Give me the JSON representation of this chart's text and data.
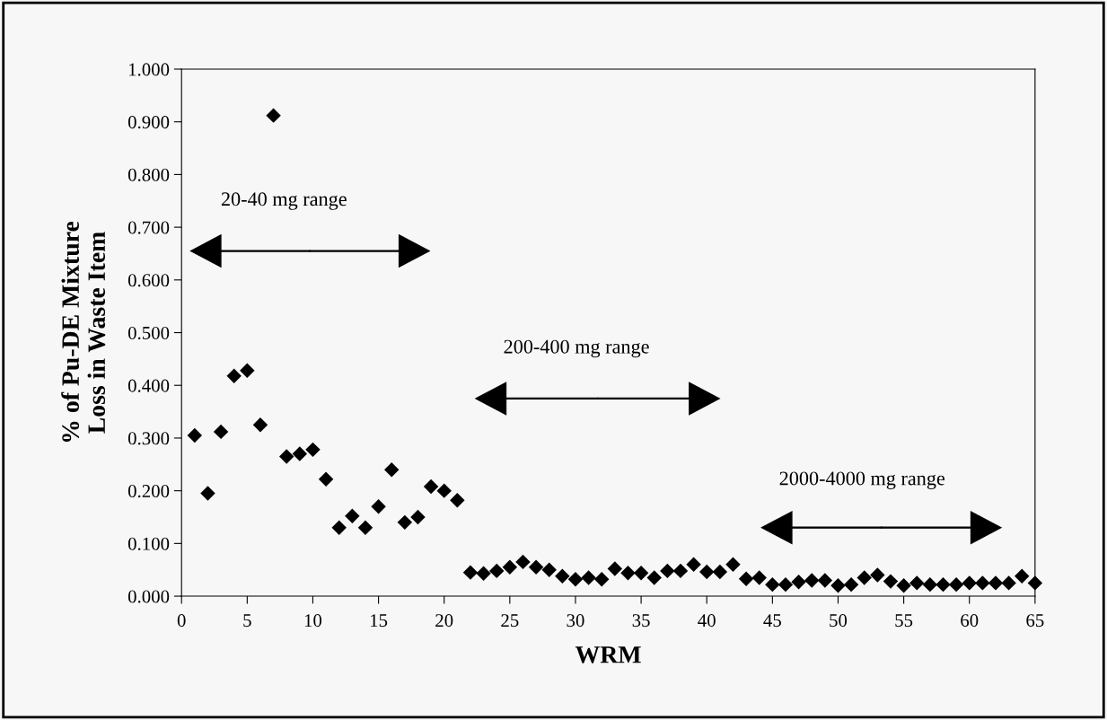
{
  "chart_data": {
    "type": "scatter",
    "xlabel": "WRM",
    "ylabel": "% of Pu-DE Mixture\nLoss in Waste Item",
    "x": [
      1,
      2,
      3,
      4,
      5,
      6,
      7,
      8,
      9,
      10,
      11,
      12,
      13,
      14,
      15,
      16,
      17,
      18,
      19,
      20,
      21,
      22,
      23,
      24,
      25,
      26,
      27,
      28,
      29,
      30,
      31,
      32,
      33,
      34,
      35,
      36,
      37,
      38,
      39,
      40,
      41,
      42,
      43,
      44,
      45,
      46,
      47,
      48,
      49,
      50,
      51,
      52,
      53,
      54,
      55,
      56,
      57,
      58,
      59,
      60,
      61,
      62,
      63,
      64,
      65
    ],
    "series": [
      {
        "color": "#000000",
        "values": [
          0.305,
          0.195,
          0.312,
          0.418,
          0.428,
          0.325,
          0.912,
          0.265,
          0.27,
          0.278,
          0.222,
          0.13,
          0.152,
          0.13,
          0.17,
          0.24,
          0.14,
          0.15,
          0.208,
          0.2,
          0.182,
          0.045,
          0.043,
          0.048,
          0.055,
          0.065,
          0.055,
          0.05,
          0.038,
          0.032,
          0.035,
          0.032,
          0.052,
          0.044,
          0.044,
          0.035,
          0.048,
          0.048,
          0.06,
          0.046,
          0.046,
          0.06,
          0.033,
          0.035,
          0.022,
          0.022,
          0.027,
          0.03,
          0.03,
          0.02,
          0.022,
          0.035,
          0.04,
          0.028,
          0.02,
          0.025,
          0.022,
          0.022,
          0.022,
          0.025,
          0.025,
          0.025,
          0.025,
          0.038,
          0.025
        ]
      }
    ],
    "xlim": [
      0,
      65
    ],
    "xticks": [
      0,
      5,
      10,
      15,
      20,
      25,
      30,
      35,
      40,
      45,
      50,
      55,
      60,
      65
    ],
    "ylim": [
      0,
      1
    ],
    "yticks": [
      {
        "value": 0,
        "label": "0.000"
      },
      {
        "value": 0.1,
        "label": "0.100"
      },
      {
        "value": 0.2,
        "label": "0.200"
      },
      {
        "value": 0.3,
        "label": "0.300"
      },
      {
        "value": 0.4,
        "label": "0.400"
      },
      {
        "value": 0.5,
        "label": "0.500"
      },
      {
        "value": 0.6,
        "label": "0.600"
      },
      {
        "value": 0.7,
        "label": "0.700"
      },
      {
        "value": 0.8,
        "label": "0.800"
      },
      {
        "value": 0.9,
        "label": "0.900"
      },
      {
        "value": 1,
        "label": "1.000"
      }
    ],
    "annotations": [
      "20-40 mg range",
      "200-400 mg range",
      "2000-4000 mg range"
    ],
    "marker": "diamond",
    "grid": false,
    "legend": false
  }
}
